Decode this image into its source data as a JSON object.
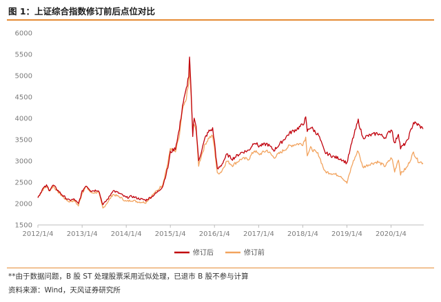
{
  "figure": {
    "title": "图 1：上证综合指数修订前后点位对比",
    "note": "**由于数据问题，B 股 ST 处理股票采用近似处理，已退市 B 股不参与计算",
    "source": "资料来源：Wind，天风证券研究所"
  },
  "colors": {
    "rule": "#e58a33",
    "revised": "#c0000b",
    "original": "#f2a35e",
    "axis_text": "#7a7a7a"
  },
  "chart_data": {
    "type": "line",
    "title": "",
    "xlabel": "",
    "ylabel": "",
    "ylim": [
      1500,
      6000
    ],
    "yticks": [
      1500,
      2000,
      2500,
      3000,
      3500,
      4000,
      4500,
      5000,
      5500,
      6000
    ],
    "xlim": [
      "2012-01-04",
      "2020-10-01"
    ],
    "xticks": [
      {
        "label": "2012/1/4",
        "date": "2012-01-04"
      },
      {
        "label": "2013/1/4",
        "date": "2013-01-04"
      },
      {
        "label": "2014/1/4",
        "date": "2014-01-04"
      },
      {
        "label": "2015/1/4",
        "date": "2015-01-04"
      },
      {
        "label": "2016/1/4",
        "date": "2016-01-04"
      },
      {
        "label": "2017/1/4",
        "date": "2017-01-04"
      },
      {
        "label": "2018/1/4",
        "date": "2018-01-04"
      },
      {
        "label": "2019/1/4",
        "date": "2019-01-04"
      },
      {
        "label": "2020/1/4",
        "date": "2020-01-04"
      }
    ],
    "grid": false,
    "legend_position": "bottom",
    "series": [
      {
        "name": "修订后",
        "color": "#c0000b",
        "points": [
          [
            "2012-01-04",
            2150
          ],
          [
            "2012-02-15",
            2350
          ],
          [
            "2012-03-15",
            2420
          ],
          [
            "2012-04-10",
            2320
          ],
          [
            "2012-05-10",
            2430
          ],
          [
            "2012-06-20",
            2300
          ],
          [
            "2012-08-01",
            2180
          ],
          [
            "2012-09-15",
            2080
          ],
          [
            "2012-11-01",
            2100
          ],
          [
            "2012-12-04",
            1990
          ],
          [
            "2013-01-04",
            2280
          ],
          [
            "2013-02-05",
            2430
          ],
          [
            "2013-03-20",
            2300
          ],
          [
            "2013-05-20",
            2320
          ],
          [
            "2013-06-25",
            1970
          ],
          [
            "2013-08-15",
            2150
          ],
          [
            "2013-09-15",
            2310
          ],
          [
            "2013-11-15",
            2230
          ],
          [
            "2014-01-04",
            2140
          ],
          [
            "2014-02-20",
            2170
          ],
          [
            "2014-04-15",
            2120
          ],
          [
            "2014-06-15",
            2080
          ],
          [
            "2014-08-01",
            2160
          ],
          [
            "2014-09-15",
            2260
          ],
          [
            "2014-11-01",
            2400
          ],
          [
            "2014-12-15",
            2850
          ],
          [
            "2015-01-04",
            3200
          ],
          [
            "2015-02-15",
            3300
          ],
          [
            "2015-03-20",
            3750
          ],
          [
            "2015-04-15",
            4300
          ],
          [
            "2015-05-10",
            4600
          ],
          [
            "2015-06-05",
            5000
          ],
          [
            "2015-06-12",
            5420
          ],
          [
            "2015-06-25",
            4600
          ],
          [
            "2015-07-08",
            3600
          ],
          [
            "2015-07-20",
            4050
          ],
          [
            "2015-08-05",
            3800
          ],
          [
            "2015-08-26",
            3000
          ],
          [
            "2015-09-15",
            3200
          ],
          [
            "2015-10-20",
            3550
          ],
          [
            "2015-11-20",
            3700
          ],
          [
            "2015-12-20",
            3750
          ],
          [
            "2016-01-04",
            3450
          ],
          [
            "2016-01-28",
            2800
          ],
          [
            "2016-03-01",
            2900
          ],
          [
            "2016-04-15",
            3150
          ],
          [
            "2016-06-01",
            3050
          ],
          [
            "2016-08-15",
            3200
          ],
          [
            "2016-10-15",
            3250
          ],
          [
            "2016-11-30",
            3450
          ],
          [
            "2017-01-04",
            3350
          ],
          [
            "2017-03-15",
            3400
          ],
          [
            "2017-05-10",
            3250
          ],
          [
            "2017-07-15",
            3450
          ],
          [
            "2017-09-15",
            3650
          ],
          [
            "2017-11-15",
            3750
          ],
          [
            "2018-01-04",
            3850
          ],
          [
            "2018-01-28",
            4000
          ],
          [
            "2018-02-10",
            3700
          ],
          [
            "2018-03-10",
            3800
          ],
          [
            "2018-05-15",
            3600
          ],
          [
            "2018-07-05",
            3200
          ],
          [
            "2018-09-15",
            3100
          ],
          [
            "2018-11-15",
            3050
          ],
          [
            "2019-01-04",
            2950
          ],
          [
            "2019-02-20",
            3500
          ],
          [
            "2019-04-08",
            3950
          ],
          [
            "2019-05-15",
            3550
          ],
          [
            "2019-07-15",
            3600
          ],
          [
            "2019-09-15",
            3650
          ],
          [
            "2019-11-15",
            3550
          ],
          [
            "2020-01-10",
            3750
          ],
          [
            "2020-02-03",
            3400
          ],
          [
            "2020-03-05",
            3650
          ],
          [
            "2020-03-23",
            3300
          ],
          [
            "2020-05-15",
            3450
          ],
          [
            "2020-07-08",
            3900
          ],
          [
            "2020-08-15",
            3850
          ],
          [
            "2020-09-25",
            3750
          ]
        ]
      },
      {
        "name": "修订前",
        "color": "#f2a35e",
        "points": [
          [
            "2012-01-04",
            2150
          ],
          [
            "2012-02-15",
            2330
          ],
          [
            "2012-03-15",
            2400
          ],
          [
            "2012-04-10",
            2300
          ],
          [
            "2012-05-10",
            2410
          ],
          [
            "2012-06-20",
            2270
          ],
          [
            "2012-08-01",
            2150
          ],
          [
            "2012-09-15",
            2050
          ],
          [
            "2012-11-01",
            2070
          ],
          [
            "2012-12-04",
            1950
          ],
          [
            "2013-01-04",
            2250
          ],
          [
            "2013-02-05",
            2400
          ],
          [
            "2013-03-20",
            2250
          ],
          [
            "2013-05-20",
            2270
          ],
          [
            "2013-06-25",
            1890
          ],
          [
            "2013-08-15",
            2080
          ],
          [
            "2013-09-15",
            2220
          ],
          [
            "2013-11-15",
            2150
          ],
          [
            "2014-01-04",
            2050
          ],
          [
            "2014-02-20",
            2080
          ],
          [
            "2014-04-15",
            2040
          ],
          [
            "2014-06-15",
            2030
          ],
          [
            "2014-08-01",
            2180
          ],
          [
            "2014-09-15",
            2300
          ],
          [
            "2014-11-01",
            2450
          ],
          [
            "2014-12-15",
            2950
          ],
          [
            "2015-01-04",
            3300
          ],
          [
            "2015-02-15",
            3200
          ],
          [
            "2015-03-20",
            3600
          ],
          [
            "2015-04-15",
            4200
          ],
          [
            "2015-05-10",
            4400
          ],
          [
            "2015-06-05",
            4800
          ],
          [
            "2015-06-12",
            5166
          ],
          [
            "2015-06-25",
            4500
          ],
          [
            "2015-07-08",
            3700
          ],
          [
            "2015-07-20",
            3900
          ],
          [
            "2015-08-05",
            3700
          ],
          [
            "2015-08-26",
            2900
          ],
          [
            "2015-09-15",
            3100
          ],
          [
            "2015-10-20",
            3400
          ],
          [
            "2015-11-20",
            3550
          ],
          [
            "2015-12-20",
            3580
          ],
          [
            "2016-01-04",
            3300
          ],
          [
            "2016-01-28",
            2700
          ],
          [
            "2016-03-01",
            2750
          ],
          [
            "2016-04-15",
            3000
          ],
          [
            "2016-06-01",
            2900
          ],
          [
            "2016-08-15",
            3050
          ],
          [
            "2016-10-15",
            3050
          ],
          [
            "2016-11-30",
            3250
          ],
          [
            "2017-01-04",
            3150
          ],
          [
            "2017-03-15",
            3250
          ],
          [
            "2017-05-10",
            3080
          ],
          [
            "2017-07-15",
            3220
          ],
          [
            "2017-09-15",
            3350
          ],
          [
            "2017-11-15",
            3400
          ],
          [
            "2018-01-04",
            3400
          ],
          [
            "2018-01-28",
            3550
          ],
          [
            "2018-02-10",
            3150
          ],
          [
            "2018-03-10",
            3300
          ],
          [
            "2018-05-15",
            3150
          ],
          [
            "2018-07-05",
            2750
          ],
          [
            "2018-09-15",
            2700
          ],
          [
            "2018-11-15",
            2650
          ],
          [
            "2019-01-04",
            2480
          ],
          [
            "2019-02-20",
            2950
          ],
          [
            "2019-04-08",
            3250
          ],
          [
            "2019-05-15",
            2850
          ],
          [
            "2019-07-15",
            2930
          ],
          [
            "2019-09-15",
            2980
          ],
          [
            "2019-11-15",
            2880
          ],
          [
            "2020-01-10",
            3080
          ],
          [
            "2020-02-03",
            2750
          ],
          [
            "2020-03-05",
            3050
          ],
          [
            "2020-03-23",
            2700
          ],
          [
            "2020-05-15",
            2850
          ],
          [
            "2020-07-08",
            3200
          ],
          [
            "2020-08-15",
            3000
          ],
          [
            "2020-09-25",
            2950
          ]
        ]
      }
    ]
  }
}
